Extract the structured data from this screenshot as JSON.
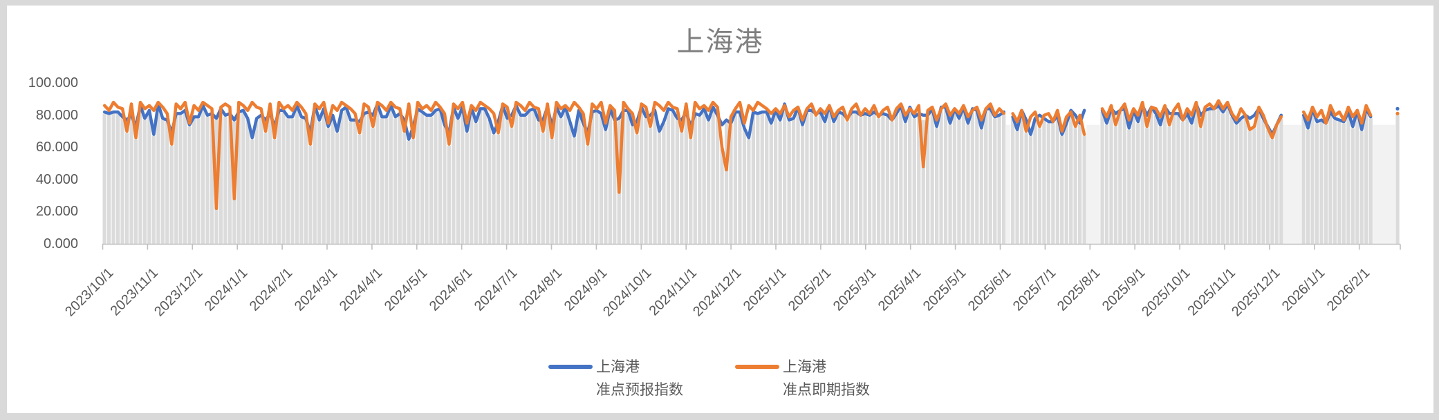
{
  "page": {
    "background": "#d9d9d9",
    "canvas_background": "#ffffff"
  },
  "title": "上海港",
  "y_axis": {
    "tick_labels": [
      "0.000",
      "20.000",
      "40.000",
      "60.000",
      "80.000",
      "100.000"
    ],
    "min": 0,
    "max": 100
  },
  "x_axis": {
    "tick_labels": [
      "2023/10/1",
      "2023/11/1",
      "2023/12/1",
      "2024/1/1",
      "2024/2/1",
      "2024/3/1",
      "2024/4/1",
      "2024/5/1",
      "2024/6/1",
      "2024/7/1",
      "2024/8/1",
      "2024/9/1",
      "2024/10/1",
      "2024/11/1",
      "2024/12/1",
      "2025/1/1",
      "2025/2/1",
      "2025/3/1",
      "2025/4/1",
      "2025/5/1",
      "2025/6/1",
      "2025/7/1",
      "2025/8/1",
      "2025/9/1",
      "2025/10/1",
      "2025/11/1",
      "2025/12/1",
      "2026/1/1",
      "2026/2/1"
    ]
  },
  "legend": [
    {
      "label_line1": "上海港",
      "label_line2": "准点预报指数",
      "color": "#4472C4"
    },
    {
      "label_line1": "上海港",
      "label_line2": "准点即期指数",
      "color": "#ED7D31"
    }
  ],
  "chart_data": {
    "type": "line",
    "title": "上海港",
    "x": {
      "start_date": "2023/10/1",
      "step_days": 3,
      "count": 290
    },
    "ylim": [
      0,
      100
    ],
    "legend_position": "bottom",
    "background_bars": {
      "color": "#dbdbdb",
      "gap_ghost_color": "#f2f2f2"
    },
    "series": [
      {
        "name": "上海港 准点预报指数",
        "color": "#4472C4",
        "values": [
          82,
          81,
          82,
          82,
          79,
          77,
          80,
          73,
          86,
          78,
          83,
          68,
          87,
          78,
          77,
          69,
          81,
          81,
          83,
          74,
          79,
          79,
          86,
          80,
          81,
          78,
          84,
          80,
          81,
          77,
          82,
          83,
          78,
          66,
          78,
          80,
          77,
          81,
          73,
          83,
          83,
          79,
          79,
          86,
          79,
          78,
          69,
          86,
          77,
          84,
          73,
          80,
          70,
          83,
          85,
          77,
          77,
          76,
          81,
          82,
          80,
          87,
          79,
          79,
          86,
          79,
          81,
          77,
          65,
          73,
          84,
          82,
          80,
          80,
          83,
          84,
          74,
          69,
          85,
          78,
          85,
          70,
          85,
          76,
          84,
          84,
          78,
          69,
          76,
          86,
          78,
          80,
          86,
          80,
          80,
          83,
          84,
          77,
          77,
          85,
          73,
          85,
          79,
          85,
          76,
          67,
          83,
          75,
          69,
          82,
          83,
          81,
          71,
          84,
          77,
          78,
          83,
          83,
          74,
          76,
          85,
          79,
          80,
          83,
          70,
          76,
          84,
          83,
          78,
          77,
          82,
          73,
          81,
          80,
          84,
          77,
          85,
          80,
          74,
          77,
          75,
          82,
          82,
          72,
          66,
          82,
          81,
          82,
          82,
          75,
          83,
          77,
          87,
          77,
          78,
          85,
          74,
          83,
          83,
          81,
          82,
          76,
          86,
          76,
          82,
          81,
          78,
          82,
          82,
          80,
          81,
          80,
          82,
          80,
          81,
          80,
          77,
          81,
          86,
          76,
          85,
          79,
          81,
          80,
          80,
          84,
          73,
          85,
          85,
          75,
          84,
          78,
          85,
          75,
          84,
          83,
          72,
          84,
          84,
          79,
          80,
          82,
          null,
          79,
          71,
          83,
          77,
          68,
          78,
          80,
          78,
          76,
          76,
          80,
          68,
          75,
          83,
          80,
          75,
          83,
          null,
          null,
          null,
          83,
          75,
          84,
          81,
          83,
          84,
          72,
          83,
          76,
          86,
          80,
          85,
          81,
          74,
          85,
          81,
          81,
          81,
          77,
          81,
          75,
          87,
          80,
          83,
          84,
          84,
          86,
          82,
          87,
          80,
          75,
          78,
          80,
          78,
          80,
          84,
          78,
          73,
          68,
          74,
          80,
          null,
          null,
          null,
          null,
          80,
          72,
          84,
          76,
          77,
          75,
          82,
          78,
          77,
          76,
          82,
          73,
          83,
          71,
          84,
          79,
          null,
          null,
          null,
          null,
          null,
          84
        ]
      },
      {
        "name": "上海港 准点即期指数",
        "color": "#ED7D31",
        "values": [
          86,
          83,
          88,
          85,
          84,
          70,
          87,
          66,
          88,
          84,
          86,
          83,
          88,
          85,
          81,
          62,
          87,
          84,
          88,
          75,
          86,
          83,
          88,
          86,
          84,
          22,
          85,
          87,
          85,
          28,
          88,
          86,
          83,
          88,
          85,
          84,
          70,
          87,
          66,
          88,
          84,
          86,
          83,
          88,
          85,
          81,
          62,
          87,
          84,
          88,
          75,
          86,
          83,
          88,
          86,
          84,
          81,
          69,
          87,
          85,
          73,
          88,
          86,
          83,
          88,
          85,
          84,
          70,
          87,
          66,
          88,
          84,
          86,
          83,
          88,
          85,
          81,
          62,
          87,
          84,
          88,
          75,
          86,
          83,
          88,
          86,
          84,
          81,
          69,
          87,
          85,
          73,
          88,
          86,
          83,
          88,
          85,
          84,
          70,
          87,
          66,
          88,
          84,
          86,
          83,
          88,
          85,
          81,
          62,
          87,
          84,
          88,
          75,
          86,
          83,
          32,
          88,
          84,
          81,
          69,
          87,
          85,
          73,
          88,
          86,
          83,
          88,
          85,
          84,
          70,
          87,
          66,
          88,
          84,
          86,
          83,
          88,
          85,
          60,
          46,
          79,
          84,
          88,
          75,
          86,
          83,
          88,
          86,
          84,
          81,
          84,
          81,
          86,
          79,
          83,
          85,
          77,
          84,
          87,
          80,
          84,
          81,
          86,
          79,
          83,
          85,
          77,
          84,
          87,
          80,
          84,
          81,
          86,
          79,
          83,
          85,
          77,
          84,
          87,
          80,
          84,
          81,
          86,
          48,
          83,
          85,
          77,
          84,
          87,
          80,
          84,
          81,
          86,
          79,
          83,
          85,
          77,
          84,
          87,
          80,
          84,
          81,
          null,
          81,
          76,
          83,
          70,
          79,
          82,
          73,
          80,
          81,
          76,
          83,
          70,
          79,
          82,
          73,
          80,
          68,
          null,
          null,
          null,
          84,
          79,
          86,
          74,
          83,
          87,
          77,
          84,
          80,
          88,
          73,
          85,
          84,
          79,
          86,
          74,
          83,
          87,
          77,
          84,
          80,
          88,
          73,
          85,
          87,
          84,
          89,
          84,
          88,
          81,
          77,
          84,
          80,
          71,
          73,
          85,
          80,
          72,
          66,
          74,
          79,
          null,
          null,
          null,
          null,
          82,
          77,
          85,
          79,
          83,
          75,
          86,
          80,
          82,
          77,
          85,
          79,
          83,
          75,
          86,
          80,
          null,
          null,
          null,
          null,
          null,
          81
        ]
      }
    ]
  }
}
